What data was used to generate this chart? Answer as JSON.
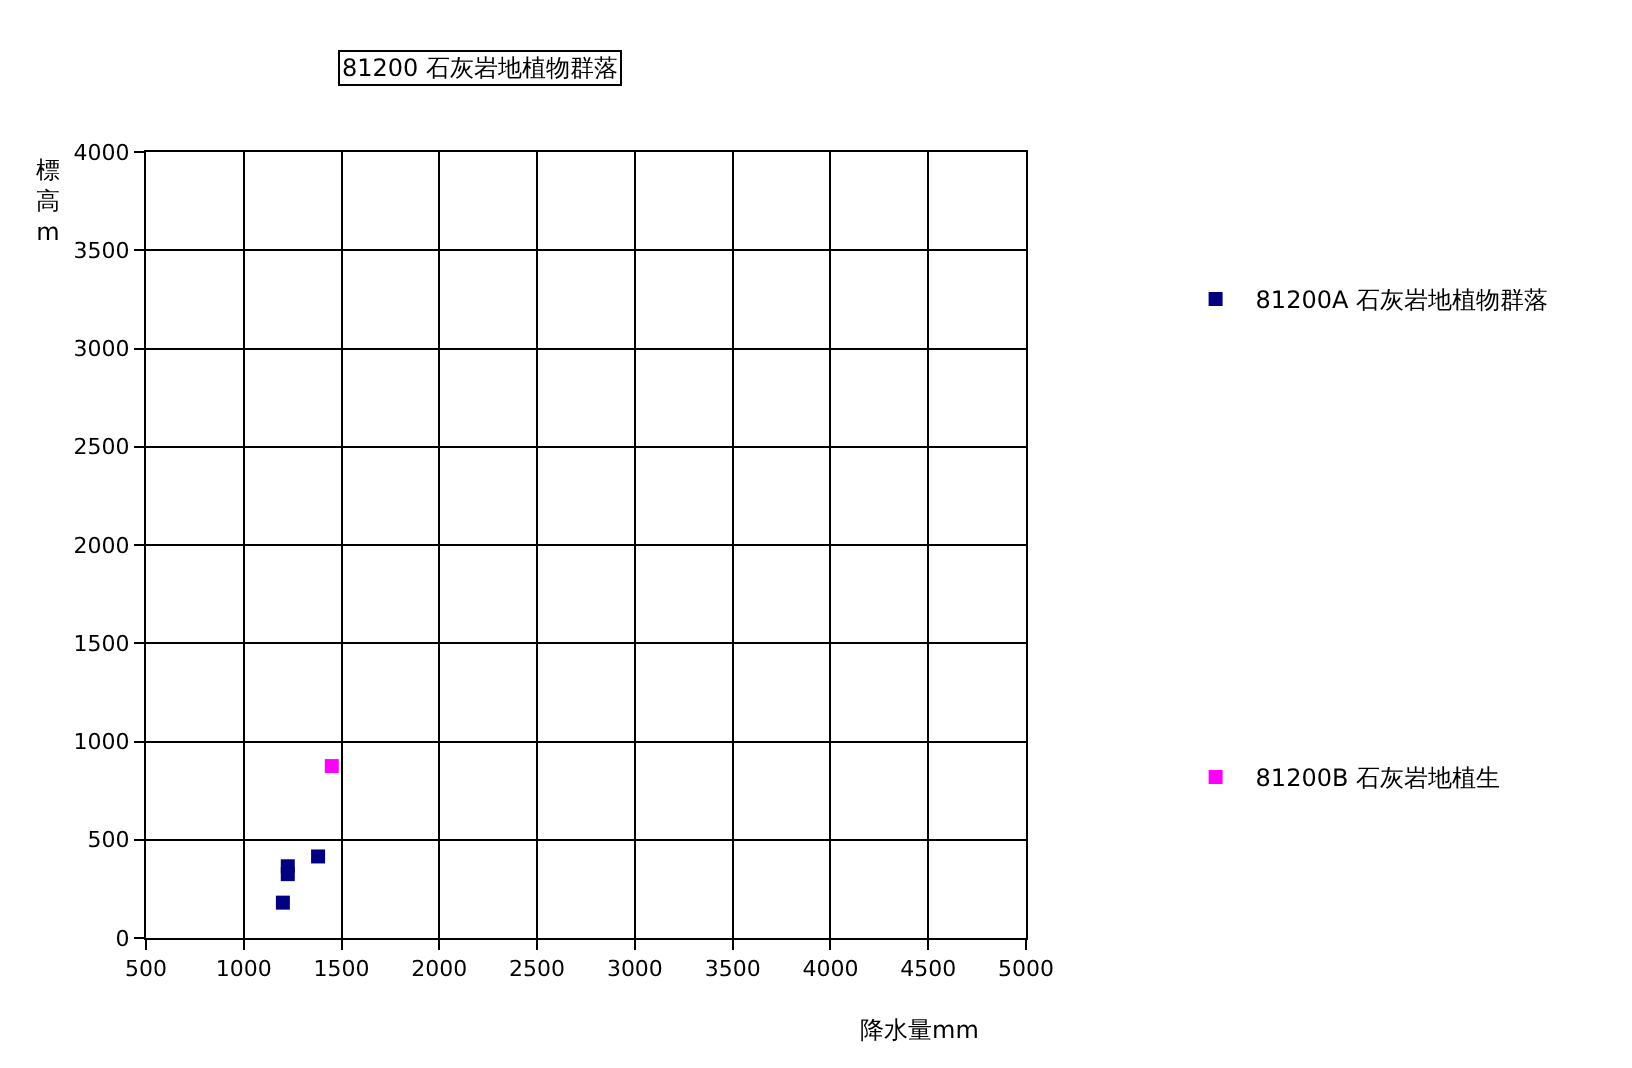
{
  "chart_data": {
    "type": "scatter",
    "title": "81200 石灰岩地植物群落",
    "xlabel": "降水量mm",
    "ylabel": "標高m",
    "series": [
      {
        "name": "81200A 石灰岩地植物群落",
        "color": "#000080",
        "x": [
          1200,
          1225,
          1225,
          1380
        ],
        "values": [
          180,
          365,
          325,
          415
        ]
      },
      {
        "name": "81200B 石灰岩地植生",
        "color": "#ff00ff",
        "x": [
          1450
        ],
        "values": [
          875
        ]
      }
    ],
    "xlim": [
      500,
      5000
    ],
    "xticks": [
      500,
      1000,
      1500,
      2000,
      2500,
      3000,
      3500,
      4000,
      4500,
      5000
    ],
    "ylim": [
      0,
      4000
    ],
    "yticks": [
      0,
      500,
      1000,
      1500,
      2000,
      2500,
      3000,
      3500,
      4000
    ],
    "grid": true,
    "legend": "right",
    "marker": "square"
  }
}
